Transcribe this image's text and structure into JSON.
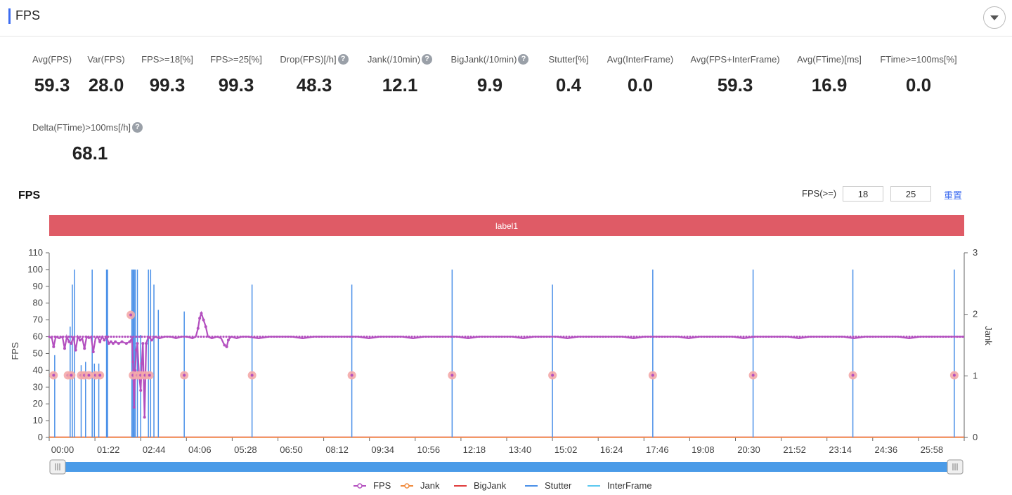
{
  "header": {
    "title": "FPS"
  },
  "stats": [
    {
      "label": "Avg(FPS)",
      "value": "59.3",
      "help": false
    },
    {
      "label": "Var(FPS)",
      "value": "28.0",
      "help": false
    },
    {
      "label": "FPS>=18[%]",
      "value": "99.3",
      "help": false
    },
    {
      "label": "FPS>=25[%]",
      "value": "99.3",
      "help": false
    },
    {
      "label": "Drop(FPS)[/h]",
      "value": "48.3",
      "help": true
    },
    {
      "label": "Jank(/10min)",
      "value": "12.1",
      "help": true
    },
    {
      "label": "BigJank(/10min)",
      "value": "9.9",
      "help": true
    },
    {
      "label": "Stutter[%]",
      "value": "0.4",
      "help": false
    },
    {
      "label": "Avg(InterFrame)",
      "value": "0.0",
      "help": false
    },
    {
      "label": "Avg(FPS+InterFrame)",
      "value": "59.3",
      "help": false
    },
    {
      "label": "Avg(FTime)[ms]",
      "value": "16.9",
      "help": false
    },
    {
      "label": "FTime>=100ms[%]",
      "value": "0.0",
      "help": false
    },
    {
      "label": "Delta(FTime)>100ms[/h]",
      "value": "68.1",
      "help": true
    }
  ],
  "chart_controls": {
    "title": "FPS",
    "threshold_label": "FPS(>=)",
    "threshold_low": "18",
    "threshold_high": "25",
    "reset_label": "重置"
  },
  "chart_data": {
    "type": "line",
    "title": "FPS",
    "band_label": "label1",
    "ylabel": "FPS",
    "y2label": "Jank",
    "ylim": [
      0,
      110
    ],
    "y2lim": [
      0,
      3
    ],
    "yticks": [
      0,
      10,
      20,
      30,
      40,
      50,
      60,
      70,
      80,
      90,
      100,
      110
    ],
    "y2ticks": [
      0,
      1,
      2,
      3
    ],
    "xlim": [
      0,
      1660
    ],
    "xticks": [
      "00:00",
      "01:22",
      "02:44",
      "04:06",
      "05:28",
      "06:50",
      "08:12",
      "09:34",
      "10:56",
      "12:18",
      "13:40",
      "15:02",
      "16:24",
      "17:46",
      "19:08",
      "20:30",
      "21:52",
      "23:14",
      "24:36",
      "25:58"
    ],
    "legend": [
      "FPS",
      "Jank",
      "BigJank",
      "Stutter",
      "InterFrame"
    ],
    "legend_position": "bottom",
    "colors": {
      "FPS": "#b34fbf",
      "Jank": "#f08a3c",
      "BigJank": "#e03c3c",
      "Stutter": "#4a90e8",
      "InterFrame": "#5bc8f0",
      "band": "#df5b66",
      "marker": "#f4a8a8"
    },
    "fps_baseline": 60,
    "fps_points": [
      [
        0,
        60
      ],
      [
        5,
        59
      ],
      [
        8,
        54
      ],
      [
        12,
        60
      ],
      [
        18,
        59
      ],
      [
        24,
        60
      ],
      [
        28,
        53
      ],
      [
        32,
        60
      ],
      [
        36,
        57
      ],
      [
        40,
        56
      ],
      [
        44,
        60
      ],
      [
        48,
        52
      ],
      [
        52,
        60
      ],
      [
        56,
        58
      ],
      [
        60,
        59
      ],
      [
        64,
        53
      ],
      [
        68,
        60
      ],
      [
        72,
        59
      ],
      [
        76,
        60
      ],
      [
        80,
        51
      ],
      [
        84,
        59
      ],
      [
        88,
        60
      ],
      [
        92,
        57
      ],
      [
        96,
        60
      ],
      [
        100,
        58
      ],
      [
        104,
        60
      ],
      [
        108,
        56
      ],
      [
        112,
        57
      ],
      [
        116,
        56
      ],
      [
        120,
        57
      ],
      [
        126,
        56
      ],
      [
        132,
        57
      ],
      [
        140,
        56
      ],
      [
        146,
        57
      ],
      [
        150,
        59
      ],
      [
        152,
        45
      ],
      [
        154,
        18
      ],
      [
        156,
        40
      ],
      [
        158,
        52
      ],
      [
        160,
        56
      ],
      [
        163,
        38
      ],
      [
        166,
        28
      ],
      [
        168,
        44
      ],
      [
        170,
        56
      ],
      [
        173,
        12
      ],
      [
        176,
        56
      ],
      [
        180,
        60
      ],
      [
        186,
        58
      ],
      [
        192,
        60
      ],
      [
        200,
        59
      ],
      [
        210,
        60
      ],
      [
        220,
        60
      ],
      [
        230,
        59
      ],
      [
        240,
        60
      ],
      [
        250,
        60
      ],
      [
        260,
        59
      ],
      [
        266,
        60
      ],
      [
        270,
        65
      ],
      [
        273,
        71
      ],
      [
        276,
        74
      ],
      [
        280,
        70
      ],
      [
        284,
        66
      ],
      [
        288,
        60
      ],
      [
        295,
        59
      ],
      [
        305,
        60
      ],
      [
        312,
        59
      ],
      [
        318,
        55
      ],
      [
        322,
        54
      ],
      [
        325,
        58
      ],
      [
        330,
        60
      ],
      [
        340,
        59
      ],
      [
        350,
        60
      ],
      [
        360,
        60
      ],
      [
        380,
        59
      ],
      [
        400,
        60
      ],
      [
        420,
        60
      ],
      [
        440,
        60
      ],
      [
        460,
        59
      ],
      [
        480,
        60
      ],
      [
        500,
        60
      ],
      [
        520,
        60
      ],
      [
        540,
        60
      ],
      [
        560,
        60
      ],
      [
        580,
        59
      ],
      [
        600,
        60
      ],
      [
        620,
        60
      ],
      [
        640,
        60
      ],
      [
        660,
        59
      ],
      [
        680,
        60
      ],
      [
        700,
        60
      ],
      [
        720,
        60
      ],
      [
        740,
        60
      ],
      [
        760,
        59
      ],
      [
        780,
        60
      ],
      [
        800,
        60
      ],
      [
        820,
        60
      ],
      [
        840,
        60
      ],
      [
        860,
        59
      ],
      [
        880,
        60
      ],
      [
        900,
        60
      ],
      [
        920,
        60
      ],
      [
        940,
        59
      ],
      [
        960,
        60
      ],
      [
        980,
        60
      ],
      [
        1000,
        60
      ],
      [
        1020,
        60
      ],
      [
        1040,
        60
      ],
      [
        1060,
        59
      ],
      [
        1080,
        60
      ],
      [
        1100,
        60
      ],
      [
        1120,
        60
      ],
      [
        1140,
        60
      ],
      [
        1160,
        59
      ],
      [
        1180,
        60
      ],
      [
        1200,
        60
      ],
      [
        1220,
        60
      ],
      [
        1240,
        60
      ],
      [
        1260,
        59
      ],
      [
        1280,
        60
      ],
      [
        1300,
        60
      ],
      [
        1320,
        60
      ],
      [
        1340,
        60
      ],
      [
        1360,
        59
      ],
      [
        1380,
        60
      ],
      [
        1400,
        60
      ],
      [
        1420,
        60
      ],
      [
        1440,
        60
      ],
      [
        1460,
        59
      ],
      [
        1480,
        60
      ],
      [
        1500,
        60
      ],
      [
        1520,
        60
      ],
      [
        1540,
        60
      ],
      [
        1560,
        59
      ],
      [
        1580,
        60
      ],
      [
        1600,
        60
      ],
      [
        1620,
        60
      ],
      [
        1640,
        60
      ],
      [
        1660,
        60
      ]
    ],
    "fps_markers": [
      [
        8,
        37
      ],
      [
        34,
        37
      ],
      [
        40,
        37
      ],
      [
        58,
        37
      ],
      [
        64,
        37
      ],
      [
        72,
        37
      ],
      [
        84,
        37
      ],
      [
        92,
        37
      ],
      [
        148,
        73
      ],
      [
        152,
        37
      ],
      [
        160,
        37
      ],
      [
        166,
        37
      ],
      [
        174,
        37
      ],
      [
        182,
        37
      ],
      [
        245,
        37
      ],
      [
        368,
        37
      ],
      [
        549,
        37
      ],
      [
        731,
        37
      ],
      [
        913,
        37
      ],
      [
        1095,
        37
      ],
      [
        1277,
        37
      ],
      [
        1458,
        37
      ],
      [
        1642,
        37
      ]
    ],
    "stutter_spikes": [
      [
        10,
        49
      ],
      [
        38,
        66
      ],
      [
        42,
        91
      ],
      [
        46,
        100
      ],
      [
        58,
        43
      ],
      [
        66,
        45
      ],
      [
        78,
        100
      ],
      [
        82,
        44
      ],
      [
        90,
        44
      ],
      [
        104,
        100
      ],
      [
        106,
        100
      ],
      [
        150,
        100
      ],
      [
        152,
        100
      ],
      [
        154,
        100
      ],
      [
        156,
        100
      ],
      [
        160,
        100
      ],
      [
        166,
        61
      ],
      [
        180,
        100
      ],
      [
        184,
        100
      ],
      [
        190,
        91
      ],
      [
        198,
        76
      ],
      [
        245,
        75
      ],
      [
        368,
        91
      ],
      [
        549,
        91
      ],
      [
        731,
        100
      ],
      [
        913,
        91
      ],
      [
        1095,
        100
      ],
      [
        1277,
        100
      ],
      [
        1458,
        100
      ],
      [
        1642,
        100
      ]
    ]
  }
}
